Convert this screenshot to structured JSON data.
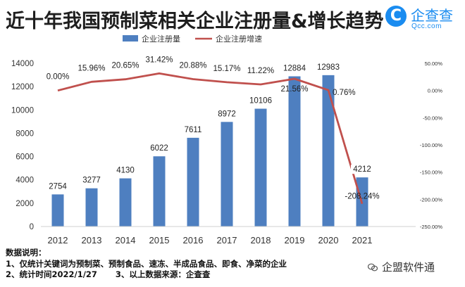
{
  "title": "近十年我国预制菜相关企业注册量&增长趋势",
  "logo": {
    "name_cn": "企查查",
    "name_en": "Qcc.com",
    "mark": "C"
  },
  "chart_data": {
    "type": "bar+line",
    "categories": [
      "2012",
      "2013",
      "2014",
      "2015",
      "2016",
      "2017",
      "2018",
      "2019",
      "2020",
      "2021"
    ],
    "series": [
      {
        "name": "企业注册量",
        "type": "bar",
        "axis": "left",
        "color": "#4e7fc0",
        "values": [
          2754,
          3277,
          4130,
          6022,
          7611,
          8972,
          10106,
          12884,
          12983,
          4212
        ]
      },
      {
        "name": "企业注册增速",
        "type": "line",
        "axis": "right",
        "color": "#c0504d",
        "unit": "%",
        "values": [
          0.0,
          15.96,
          20.65,
          31.42,
          20.88,
          15.17,
          11.22,
          21.56,
          0.76,
          -208.24
        ],
        "labels": [
          "0.00%",
          "15.96%",
          "20.65%",
          "31.42%",
          "20.88%",
          "15.17%",
          "11.22%",
          "21.56%",
          "0.76%",
          "-208.24%"
        ]
      }
    ],
    "y_left": {
      "min": 0,
      "max": 14000,
      "step": 2000
    },
    "y_right": {
      "min": -250,
      "max": 50,
      "step": 50,
      "tick_labels": [
        "50.00%",
        "0.00%",
        "-50.00%",
        "-100.00%",
        "-150.00%",
        "-200.00%",
        "-250.00%"
      ]
    },
    "legend_position": "top",
    "grid": false
  },
  "notes": {
    "heading": "数据说明：",
    "line1": "1、仅统计关键词为预制菜、预制食品、速冻、半成品食品、即食、净菜的企业",
    "line2a": "2、统计时间2022/1/27",
    "line2b": "3、以上数据来源：企查查"
  },
  "watermark": "企盟软件通"
}
